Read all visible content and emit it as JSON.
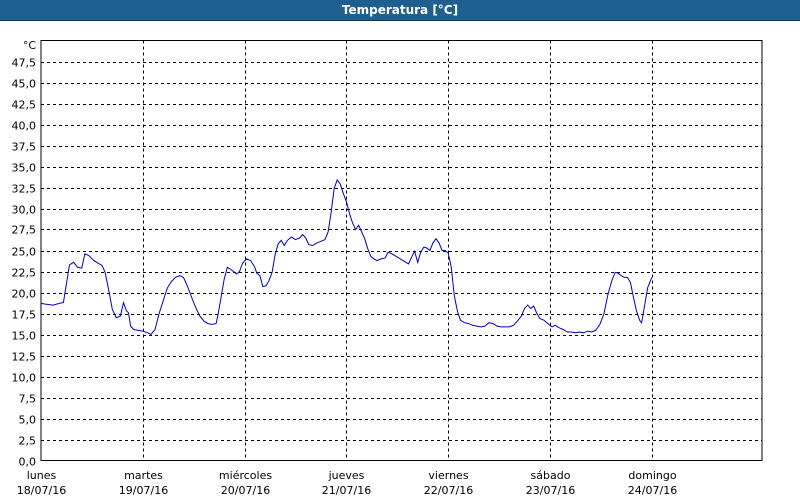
{
  "title": "Temperatura [°C]",
  "chart_data": {
    "type": "line",
    "ylabel": "°C",
    "ylim": [
      0,
      50
    ],
    "yticks": [
      "0,0",
      "2,5",
      "5,0",
      "7,5",
      "10,0",
      "12,5",
      "15,0",
      "17,5",
      "20,0",
      "22,5",
      "25,0",
      "27,5",
      "30,0",
      "32,5",
      "35,0",
      "37,5",
      "40,0",
      "42,5",
      "45,0",
      "47,5"
    ],
    "xlim_days": [
      0,
      7
    ],
    "days": [
      {
        "name": "lunes",
        "date": "18/07/16"
      },
      {
        "name": "martes",
        "date": "19/07/16"
      },
      {
        "name": "miércoles",
        "date": "20/07/16"
      },
      {
        "name": "jueves",
        "date": "21/07/16"
      },
      {
        "name": "viernes",
        "date": "22/07/16"
      },
      {
        "name": "sábado",
        "date": "23/07/16"
      },
      {
        "name": "domingo",
        "date": "24/07/16"
      }
    ],
    "grid": true,
    "line_color": "#0000c0",
    "series": [
      {
        "points": [
          [
            0.0,
            18.7
          ],
          [
            0.05,
            18.6
          ],
          [
            0.12,
            18.5
          ],
          [
            0.18,
            18.7
          ],
          [
            0.22,
            18.8
          ],
          [
            0.28,
            23.3
          ],
          [
            0.32,
            23.6
          ],
          [
            0.36,
            23.0
          ],
          [
            0.4,
            22.9
          ],
          [
            0.43,
            24.6
          ],
          [
            0.47,
            24.4
          ],
          [
            0.52,
            23.8
          ],
          [
            0.6,
            23.2
          ],
          [
            0.63,
            22.4
          ],
          [
            0.67,
            20.0
          ],
          [
            0.7,
            18.0
          ],
          [
            0.74,
            17.0
          ],
          [
            0.78,
            17.2
          ],
          [
            0.81,
            18.8
          ],
          [
            0.84,
            17.8
          ],
          [
            0.86,
            17.6
          ],
          [
            0.88,
            16.0
          ],
          [
            0.91,
            15.6
          ],
          [
            0.95,
            15.5
          ],
          [
            1.0,
            15.4
          ],
          [
            1.05,
            15.2
          ],
          [
            1.08,
            15.0
          ],
          [
            1.12,
            15.6
          ],
          [
            1.16,
            17.5
          ],
          [
            1.2,
            19.0
          ],
          [
            1.24,
            20.5
          ],
          [
            1.28,
            21.3
          ],
          [
            1.32,
            21.8
          ],
          [
            1.36,
            22.0
          ],
          [
            1.4,
            21.8
          ],
          [
            1.44,
            20.7
          ],
          [
            1.48,
            19.4
          ],
          [
            1.52,
            18.2
          ],
          [
            1.56,
            17.2
          ],
          [
            1.6,
            16.6
          ],
          [
            1.64,
            16.3
          ],
          [
            1.68,
            16.2
          ],
          [
            1.72,
            16.3
          ],
          [
            1.74,
            17.4
          ],
          [
            1.77,
            19.5
          ],
          [
            1.8,
            21.6
          ],
          [
            1.83,
            23.0
          ],
          [
            1.86,
            22.8
          ],
          [
            1.89,
            22.5
          ],
          [
            1.92,
            22.2
          ],
          [
            1.95,
            22.5
          ],
          [
            1.98,
            23.5
          ],
          [
            2.02,
            24.0
          ],
          [
            2.06,
            23.8
          ],
          [
            2.1,
            23.0
          ],
          [
            2.12,
            22.3
          ],
          [
            2.15,
            22.0
          ],
          [
            2.18,
            20.7
          ],
          [
            2.21,
            20.8
          ],
          [
            2.24,
            21.4
          ],
          [
            2.27,
            22.4
          ],
          [
            2.3,
            24.5
          ],
          [
            2.33,
            25.8
          ],
          [
            2.36,
            26.2
          ],
          [
            2.39,
            25.6
          ],
          [
            2.42,
            26.2
          ],
          [
            2.46,
            26.6
          ],
          [
            2.5,
            26.3
          ],
          [
            2.54,
            26.5
          ],
          [
            2.57,
            26.9
          ],
          [
            2.6,
            26.5
          ],
          [
            2.63,
            25.7
          ],
          [
            2.67,
            25.6
          ],
          [
            2.71,
            25.9
          ],
          [
            2.75,
            26.1
          ],
          [
            2.79,
            26.3
          ],
          [
            2.82,
            27.2
          ],
          [
            2.85,
            29.5
          ],
          [
            2.88,
            32.4
          ],
          [
            2.91,
            33.4
          ],
          [
            2.94,
            32.9
          ],
          [
            2.97,
            31.8
          ],
          [
            3.0,
            30.8
          ],
          [
            3.03,
            29.4
          ],
          [
            3.06,
            28.3
          ],
          [
            3.09,
            27.5
          ],
          [
            3.12,
            28.0
          ],
          [
            3.15,
            27.2
          ],
          [
            3.18,
            26.4
          ],
          [
            3.21,
            25.2
          ],
          [
            3.24,
            24.3
          ],
          [
            3.27,
            24.0
          ],
          [
            3.3,
            23.8
          ],
          [
            3.34,
            24.0
          ],
          [
            3.38,
            24.1
          ],
          [
            3.41,
            24.8
          ],
          [
            3.45,
            24.6
          ],
          [
            3.49,
            24.3
          ],
          [
            3.53,
            24.0
          ],
          [
            3.57,
            23.7
          ],
          [
            3.61,
            23.4
          ],
          [
            3.64,
            24.2
          ],
          [
            3.67,
            24.9
          ],
          [
            3.7,
            23.6
          ],
          [
            3.73,
            24.8
          ],
          [
            3.76,
            25.4
          ],
          [
            3.79,
            25.3
          ],
          [
            3.82,
            25.0
          ],
          [
            3.85,
            25.9
          ],
          [
            3.88,
            26.4
          ],
          [
            3.91,
            25.9
          ],
          [
            3.94,
            25.0
          ],
          [
            3.97,
            25.0
          ],
          [
            4.0,
            24.7
          ],
          [
            4.03,
            23.0
          ],
          [
            4.06,
            19.6
          ],
          [
            4.09,
            17.8
          ],
          [
            4.12,
            16.7
          ],
          [
            4.16,
            16.4
          ],
          [
            4.2,
            16.3
          ],
          [
            4.24,
            16.1
          ],
          [
            4.28,
            16.0
          ],
          [
            4.32,
            15.9
          ],
          [
            4.36,
            16.0
          ],
          [
            4.4,
            16.4
          ],
          [
            4.44,
            16.3
          ],
          [
            4.48,
            16.0
          ],
          [
            4.52,
            15.9
          ],
          [
            4.56,
            15.9
          ],
          [
            4.6,
            15.9
          ],
          [
            4.64,
            16.1
          ],
          [
            4.68,
            16.6
          ],
          [
            4.72,
            17.2
          ],
          [
            4.75,
            18.1
          ],
          [
            4.78,
            18.5
          ],
          [
            4.81,
            18.1
          ],
          [
            4.84,
            18.4
          ],
          [
            4.87,
            17.5
          ],
          [
            4.9,
            16.9
          ],
          [
            4.94,
            16.7
          ],
          [
            4.98,
            16.3
          ],
          [
            5.02,
            15.9
          ],
          [
            5.05,
            16.1
          ],
          [
            5.09,
            15.8
          ],
          [
            5.13,
            15.6
          ],
          [
            5.17,
            15.3
          ],
          [
            5.21,
            15.3
          ],
          [
            5.25,
            15.2
          ],
          [
            5.29,
            15.3
          ],
          [
            5.33,
            15.2
          ],
          [
            5.37,
            15.4
          ],
          [
            5.41,
            15.3
          ],
          [
            5.45,
            15.5
          ],
          [
            5.49,
            16.2
          ],
          [
            5.53,
            17.5
          ],
          [
            5.57,
            19.8
          ],
          [
            5.61,
            21.5
          ],
          [
            5.64,
            22.4
          ],
          [
            5.67,
            22.3
          ],
          [
            5.7,
            22.0
          ],
          [
            5.73,
            21.8
          ],
          [
            5.76,
            21.8
          ],
          [
            5.79,
            21.2
          ],
          [
            5.82,
            19.4
          ],
          [
            5.85,
            17.8
          ],
          [
            5.88,
            16.7
          ],
          [
            5.9,
            16.4
          ],
          [
            5.93,
            18.5
          ],
          [
            5.96,
            20.6
          ],
          [
            6.0,
            21.8
          ]
        ]
      }
    ]
  }
}
